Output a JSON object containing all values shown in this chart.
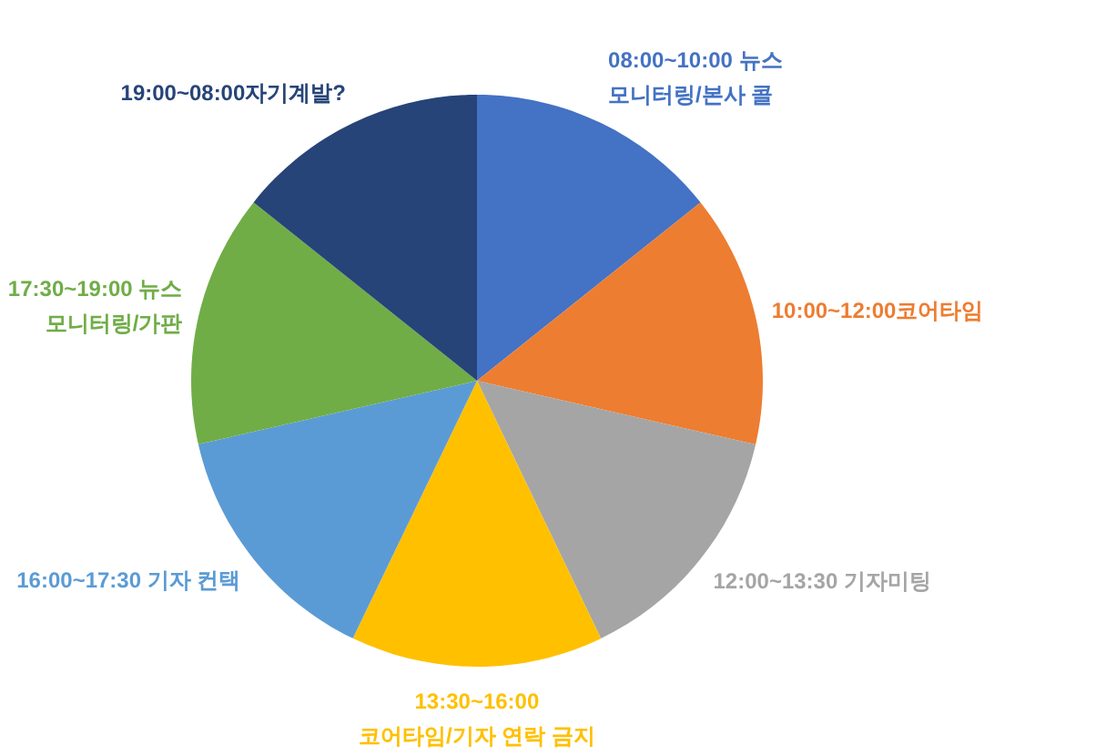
{
  "chart_data": {
    "type": "pie",
    "categories": [
      "08:00~10:00 뉴스\n모니터링/본사 콜",
      "10:00~12:00코어타임",
      "12:00~13:30 기자미팅",
      "13:30~16:00\n코어타임/기자 연락 금지",
      "16:00~17:30 기자 컨택",
      "17:30~19:00 뉴스\n모니터링/가판",
      "19:00~08:00자기계발?"
    ],
    "values": [
      14.29,
      14.29,
      14.28,
      14.29,
      14.28,
      14.29,
      14.28
    ],
    "colors": [
      "#4472c4",
      "#ed7d31",
      "#a5a5a5",
      "#ffc000",
      "#5b9bd5",
      "#70ad47",
      "#264478"
    ]
  }
}
